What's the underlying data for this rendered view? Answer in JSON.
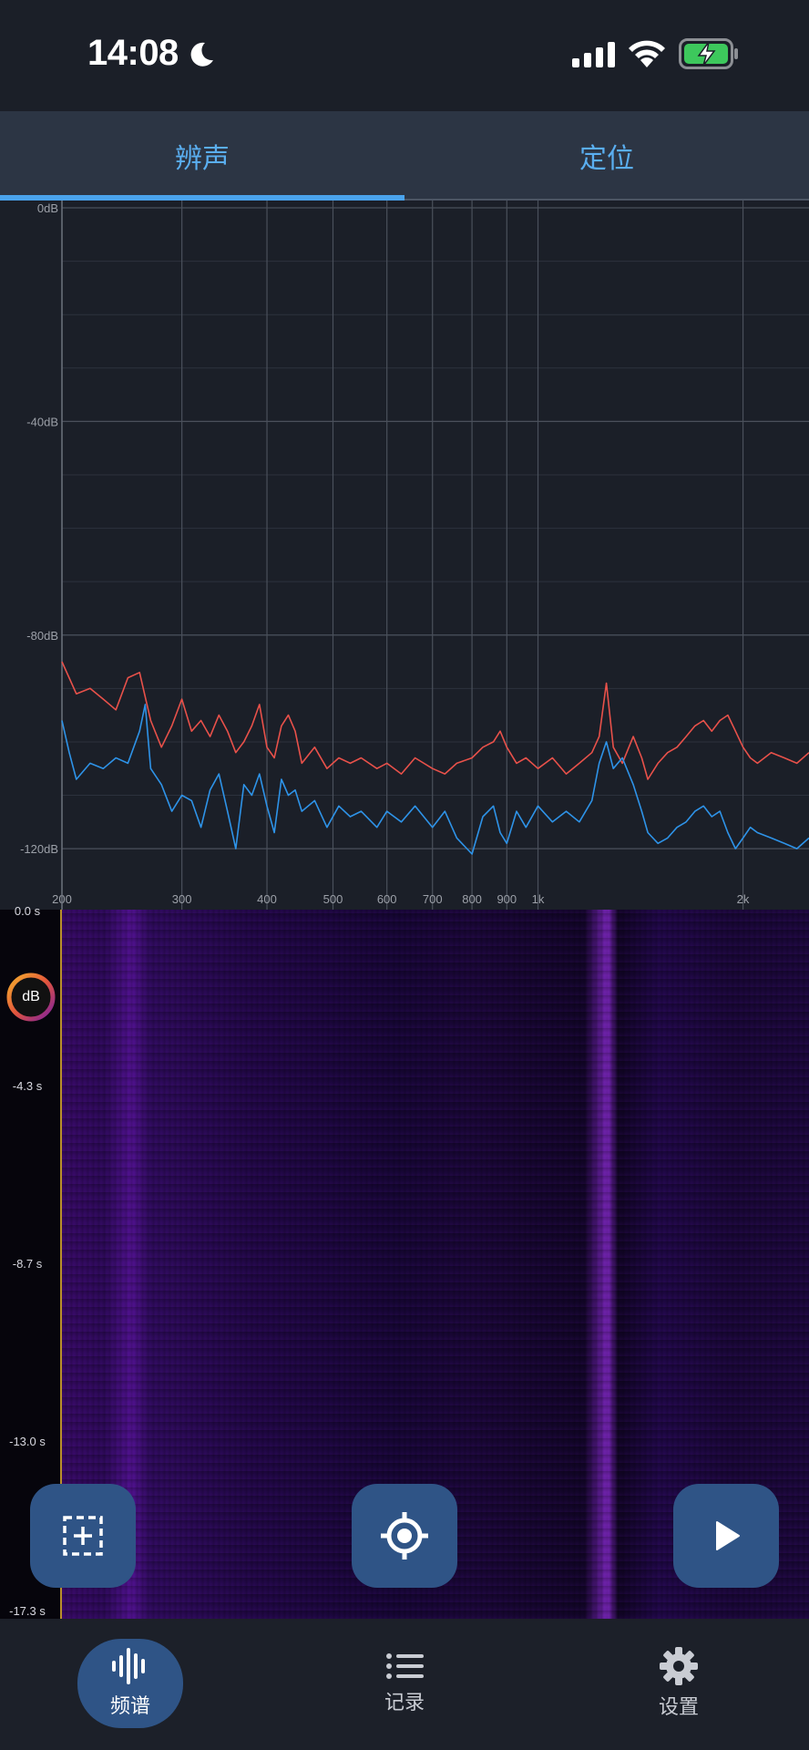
{
  "status_bar": {
    "time": "14:08",
    "icons": [
      "moon-icon",
      "signal-icon",
      "wifi-icon",
      "battery-charging-icon"
    ]
  },
  "tabs": [
    {
      "label": "辨声",
      "selected": true
    },
    {
      "label": "定位",
      "selected": false
    }
  ],
  "chart_data": {
    "type": "line",
    "x_scale": "log",
    "xlim": [
      200,
      2500
    ],
    "ylim": [
      -128,
      0
    ],
    "y_ticks": [
      "0dB",
      "-40dB",
      "-80dB",
      "-120dB"
    ],
    "x_ticks": [
      "200",
      "300",
      "400",
      "500",
      "600",
      "700",
      "800",
      "900",
      "1k",
      "2k"
    ],
    "grid": true,
    "series": [
      {
        "color": "#e8514a",
        "points": [
          [
            200,
            -85
          ],
          [
            210,
            -91
          ],
          [
            220,
            -90
          ],
          [
            230,
            -92
          ],
          [
            240,
            -94
          ],
          [
            250,
            -88
          ],
          [
            260,
            -87
          ],
          [
            270,
            -96
          ],
          [
            280,
            -101
          ],
          [
            290,
            -97
          ],
          [
            300,
            -92
          ],
          [
            310,
            -98
          ],
          [
            320,
            -96
          ],
          [
            330,
            -99
          ],
          [
            340,
            -95
          ],
          [
            350,
            -98
          ],
          [
            360,
            -102
          ],
          [
            370,
            -100
          ],
          [
            380,
            -97
          ],
          [
            390,
            -93
          ],
          [
            400,
            -101
          ],
          [
            410,
            -103
          ],
          [
            420,
            -97
          ],
          [
            430,
            -95
          ],
          [
            440,
            -98
          ],
          [
            450,
            -104
          ],
          [
            470,
            -101
          ],
          [
            490,
            -105
          ],
          [
            510,
            -103
          ],
          [
            530,
            -104
          ],
          [
            550,
            -103
          ],
          [
            580,
            -105
          ],
          [
            600,
            -104
          ],
          [
            630,
            -106
          ],
          [
            660,
            -103
          ],
          [
            700,
            -105
          ],
          [
            730,
            -106
          ],
          [
            760,
            -104
          ],
          [
            800,
            -103
          ],
          [
            830,
            -101
          ],
          [
            860,
            -100
          ],
          [
            880,
            -98
          ],
          [
            900,
            -101
          ],
          [
            930,
            -104
          ],
          [
            960,
            -103
          ],
          [
            1000,
            -105
          ],
          [
            1050,
            -103
          ],
          [
            1100,
            -106
          ],
          [
            1150,
            -104
          ],
          [
            1200,
            -102
          ],
          [
            1230,
            -99
          ],
          [
            1260,
            -89
          ],
          [
            1290,
            -101
          ],
          [
            1330,
            -104
          ],
          [
            1380,
            -99
          ],
          [
            1420,
            -103
          ],
          [
            1450,
            -107
          ],
          [
            1500,
            -104
          ],
          [
            1550,
            -102
          ],
          [
            1600,
            -101
          ],
          [
            1650,
            -99
          ],
          [
            1700,
            -97
          ],
          [
            1750,
            -96
          ],
          [
            1800,
            -98
          ],
          [
            1850,
            -96
          ],
          [
            1900,
            -95
          ],
          [
            1950,
            -98
          ],
          [
            2000,
            -101
          ],
          [
            2050,
            -103
          ],
          [
            2100,
            -104
          ],
          [
            2200,
            -102
          ],
          [
            2300,
            -103
          ],
          [
            2400,
            -104
          ],
          [
            2500,
            -102
          ]
        ]
      },
      {
        "color": "#2e93e8",
        "points": [
          [
            200,
            -96
          ],
          [
            205,
            -102
          ],
          [
            210,
            -107
          ],
          [
            220,
            -104
          ],
          [
            230,
            -105
          ],
          [
            240,
            -103
          ],
          [
            250,
            -104
          ],
          [
            260,
            -98
          ],
          [
            265,
            -93
          ],
          [
            270,
            -105
          ],
          [
            280,
            -108
          ],
          [
            290,
            -113
          ],
          [
            300,
            -110
          ],
          [
            310,
            -111
          ],
          [
            320,
            -116
          ],
          [
            330,
            -109
          ],
          [
            340,
            -106
          ],
          [
            350,
            -113
          ],
          [
            360,
            -120
          ],
          [
            370,
            -108
          ],
          [
            380,
            -110
          ],
          [
            390,
            -106
          ],
          [
            400,
            -112
          ],
          [
            410,
            -117
          ],
          [
            420,
            -107
          ],
          [
            430,
            -110
          ],
          [
            440,
            -109
          ],
          [
            450,
            -113
          ],
          [
            470,
            -111
          ],
          [
            490,
            -116
          ],
          [
            510,
            -112
          ],
          [
            530,
            -114
          ],
          [
            550,
            -113
          ],
          [
            580,
            -116
          ],
          [
            600,
            -113
          ],
          [
            630,
            -115
          ],
          [
            660,
            -112
          ],
          [
            700,
            -116
          ],
          [
            730,
            -113
          ],
          [
            760,
            -118
          ],
          [
            800,
            -121
          ],
          [
            830,
            -114
          ],
          [
            860,
            -112
          ],
          [
            880,
            -117
          ],
          [
            900,
            -119
          ],
          [
            930,
            -113
          ],
          [
            960,
            -116
          ],
          [
            1000,
            -112
          ],
          [
            1050,
            -115
          ],
          [
            1100,
            -113
          ],
          [
            1150,
            -115
          ],
          [
            1200,
            -111
          ],
          [
            1230,
            -104
          ],
          [
            1260,
            -100
          ],
          [
            1290,
            -105
          ],
          [
            1330,
            -103
          ],
          [
            1380,
            -108
          ],
          [
            1420,
            -113
          ],
          [
            1450,
            -117
          ],
          [
            1500,
            -119
          ],
          [
            1550,
            -118
          ],
          [
            1600,
            -116
          ],
          [
            1650,
            -115
          ],
          [
            1700,
            -113
          ],
          [
            1750,
            -112
          ],
          [
            1800,
            -114
          ],
          [
            1850,
            -113
          ],
          [
            1900,
            -117
          ],
          [
            1950,
            -120
          ],
          [
            2000,
            -118
          ],
          [
            2050,
            -116
          ],
          [
            2100,
            -117
          ],
          [
            2200,
            -118
          ],
          [
            2300,
            -119
          ],
          [
            2400,
            -120
          ],
          [
            2500,
            -118
          ]
        ]
      }
    ]
  },
  "spectrogram": {
    "time_labels": [
      "0.0 s",
      "-4.3 s",
      "-8.7 s",
      "-13.0 s",
      "-17.3 s"
    ],
    "badge": "dB"
  },
  "fabs": [
    {
      "name": "select-region-button",
      "icon": "add-selection-icon"
    },
    {
      "name": "locate-button",
      "icon": "crosshair-icon"
    },
    {
      "name": "play-button",
      "icon": "play-icon"
    }
  ],
  "bottom_nav": [
    {
      "label": "频谱",
      "icon": "waveform-icon",
      "active": true
    },
    {
      "label": "记录",
      "icon": "list-icon",
      "active": false
    },
    {
      "label": "设置",
      "icon": "gear-icon",
      "active": false
    }
  ]
}
